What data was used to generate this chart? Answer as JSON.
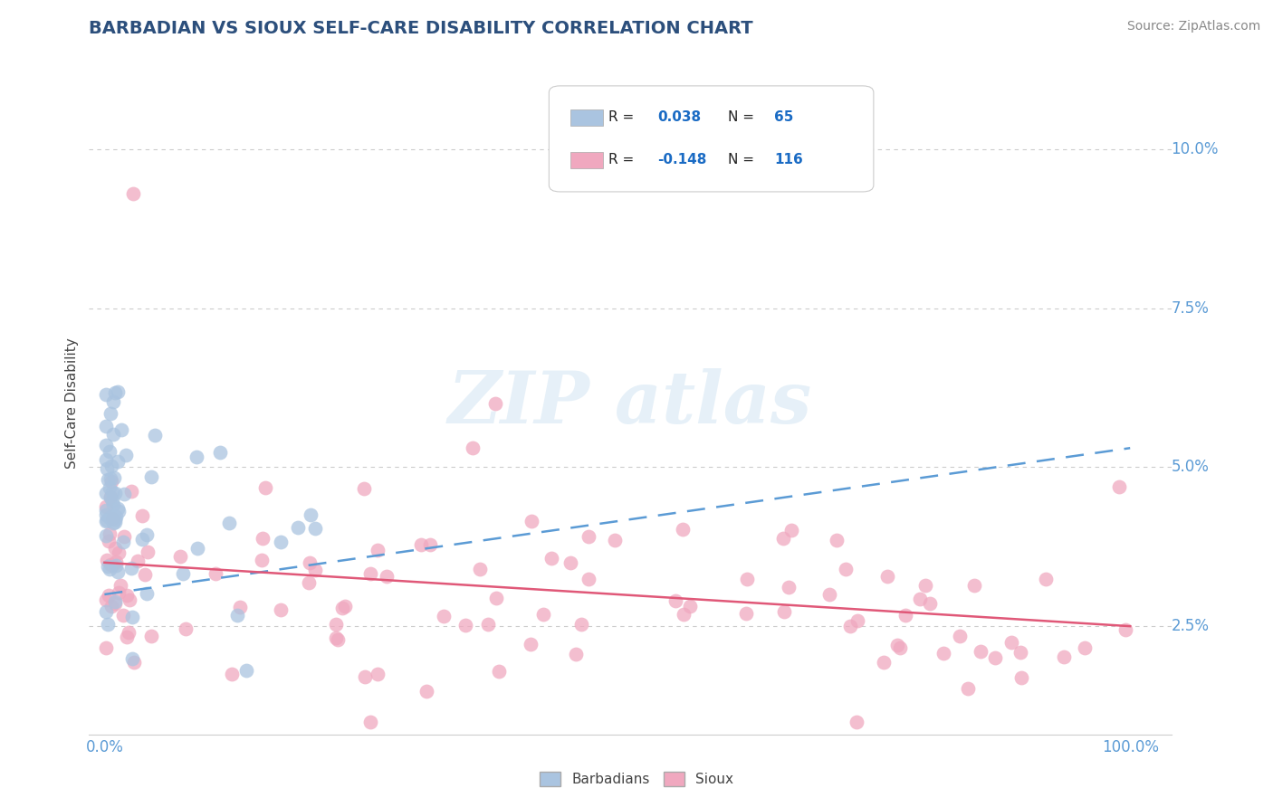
{
  "title": "BARBADIAN VS SIOUX SELF-CARE DISABILITY CORRELATION CHART",
  "source": "Source: ZipAtlas.com",
  "ylabel": "Self-Care Disability",
  "ytick_vals": [
    0.025,
    0.05,
    0.075,
    0.1
  ],
  "ytick_labels": [
    "2.5%",
    "5.0%",
    "7.5%",
    "10.0%"
  ],
  "xtick_vals": [
    0.0,
    1.0
  ],
  "xtick_labels": [
    "0.0%",
    "100.0%"
  ],
  "xlim": [
    -0.015,
    1.04
  ],
  "ylim": [
    0.008,
    0.112
  ],
  "barbadian_color": "#aac4e0",
  "barbadian_edge_color": "#7aadd4",
  "sioux_color": "#f0a8bf",
  "sioux_edge_color": "#e87aa0",
  "barbadian_line_color": "#5b9bd5",
  "sioux_line_color": "#e05878",
  "background_color": "#ffffff",
  "grid_color": "#cccccc",
  "tick_color": "#5b9bd5",
  "title_color": "#2c4f7c",
  "source_color": "#888888",
  "ylabel_color": "#444444",
  "legend_text_color": "#1a3a6b",
  "legend_r_color": "#1a6bc4",
  "dot_size": 130,
  "dot_alpha": 0.75,
  "barb_line_intercept": 0.03,
  "barb_line_slope": 0.023,
  "sioux_line_intercept": 0.035,
  "sioux_line_slope": -0.01
}
